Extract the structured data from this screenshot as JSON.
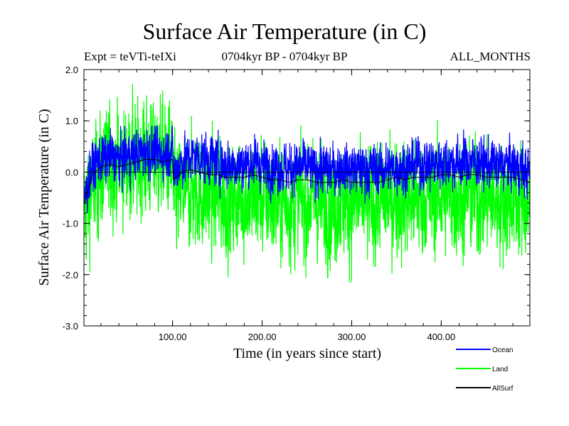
{
  "chart_data": {
    "type": "line",
    "title": "Surface Air Temperature (in C)",
    "subtitle_left": "Expt = teVTi-teIXi",
    "subtitle_center": "0704kyr BP - 0704kyr BP",
    "subtitle_right": "ALL_MONTHS",
    "xlabel": "Time (in years since start)",
    "ylabel": "Surface Air Temperature (in C)",
    "xlim": [
      1,
      499
    ],
    "ylim": [
      -3.0,
      2.0
    ],
    "xticks": [
      100,
      200,
      300,
      400
    ],
    "xtick_labels": [
      "100.00",
      "200.00",
      "300.00",
      "400.00"
    ],
    "yticks": [
      -3.0,
      -2.0,
      -1.0,
      0.0,
      1.0,
      2.0
    ],
    "ytick_labels": [
      "-3.0",
      "-2.0",
      "-1.0",
      "0.0",
      "1.0",
      "2.0"
    ],
    "grid": false,
    "legend_position": "bottom-right outside",
    "series": [
      {
        "name": "Ocean",
        "color": "#0000ff",
        "x": [
          1,
          10,
          20,
          30,
          40,
          50,
          60,
          70,
          80,
          90,
          100,
          101,
          110,
          120,
          130,
          140,
          150,
          160,
          170,
          180,
          190,
          200,
          210,
          220,
          230,
          240,
          250,
          260,
          270,
          280,
          290,
          300,
          310,
          320,
          330,
          340,
          350,
          360,
          370,
          380,
          390,
          400,
          410,
          420,
          430,
          440,
          450,
          460,
          470,
          480,
          490,
          499
        ],
        "values": [
          -0.55,
          0.05,
          0.25,
          0.3,
          0.25,
          0.3,
          0.35,
          0.4,
          0.4,
          0.35,
          0.45,
          0.0,
          0.2,
          0.3,
          0.3,
          0.25,
          0.2,
          0.15,
          0.15,
          0.15,
          0.2,
          0.15,
          0.1,
          0.1,
          0.05,
          0.1,
          0.1,
          0.05,
          0.05,
          0.05,
          0.1,
          0.05,
          0.05,
          0.05,
          0.05,
          0.05,
          0.1,
          0.1,
          0.15,
          0.15,
          0.15,
          0.2,
          0.2,
          0.15,
          0.2,
          0.2,
          0.15,
          0.15,
          0.15,
          0.15,
          0.05,
          0.0
        ],
        "min": -0.8,
        "max": 0.9
      },
      {
        "name": "Land",
        "color": "#00ff00",
        "x": [
          1,
          10,
          20,
          30,
          40,
          50,
          60,
          70,
          80,
          90,
          100,
          101,
          110,
          120,
          130,
          140,
          150,
          160,
          170,
          180,
          190,
          200,
          210,
          220,
          230,
          240,
          250,
          260,
          270,
          280,
          290,
          300,
          310,
          320,
          330,
          340,
          350,
          360,
          370,
          380,
          390,
          400,
          410,
          420,
          430,
          440,
          450,
          460,
          470,
          480,
          490,
          499
        ],
        "values": [
          -0.8,
          -0.3,
          0.0,
          0.2,
          0.15,
          0.2,
          0.2,
          0.3,
          0.3,
          0.25,
          0.2,
          -0.5,
          -0.4,
          -0.35,
          -0.4,
          -0.45,
          -0.5,
          -0.55,
          -0.55,
          -0.5,
          -0.5,
          -0.5,
          -0.55,
          -0.6,
          -0.6,
          -0.55,
          -0.6,
          -0.55,
          -0.65,
          -0.65,
          -0.55,
          -0.6,
          -0.6,
          -0.65,
          -0.6,
          -0.55,
          -0.5,
          -0.55,
          -0.5,
          -0.5,
          -0.5,
          -0.45,
          -0.45,
          -0.5,
          -0.45,
          -0.45,
          -0.5,
          -0.5,
          -0.5,
          -0.5,
          -0.55,
          -0.6
        ],
        "min": -2.3,
        "max": 1.9
      },
      {
        "name": "AllSurf",
        "color": "#000000",
        "x": [
          1,
          10,
          20,
          30,
          40,
          50,
          60,
          70,
          80,
          90,
          100,
          101,
          110,
          120,
          130,
          140,
          150,
          160,
          170,
          180,
          190,
          200,
          210,
          220,
          230,
          240,
          250,
          260,
          270,
          280,
          290,
          300,
          310,
          320,
          330,
          340,
          350,
          360,
          370,
          380,
          390,
          400,
          410,
          420,
          430,
          440,
          450,
          460,
          470,
          480,
          490,
          499
        ],
        "values": [
          -0.65,
          -0.05,
          0.1,
          0.15,
          0.1,
          0.15,
          0.2,
          0.25,
          0.25,
          0.2,
          0.25,
          -0.15,
          0.0,
          0.05,
          0.0,
          -0.05,
          -0.05,
          -0.1,
          -0.1,
          -0.1,
          -0.05,
          -0.1,
          -0.15,
          -0.15,
          -0.2,
          -0.15,
          -0.15,
          -0.2,
          -0.2,
          -0.2,
          -0.15,
          -0.2,
          -0.2,
          -0.2,
          -0.2,
          -0.15,
          -0.1,
          -0.15,
          -0.1,
          -0.1,
          -0.1,
          -0.05,
          -0.05,
          -0.1,
          -0.05,
          -0.05,
          -0.1,
          -0.1,
          -0.1,
          -0.1,
          -0.15,
          -0.2
        ]
      }
    ]
  }
}
